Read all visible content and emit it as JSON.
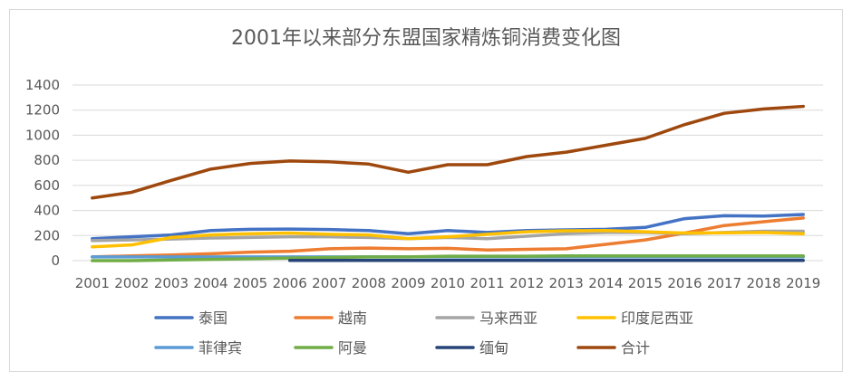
{
  "chart_data": {
    "type": "line",
    "title": "2001年以来部分东盟国家精炼铜消费变化图",
    "x": [
      "2001",
      "2002",
      "2003",
      "2004",
      "2005",
      "2006",
      "2007",
      "2008",
      "2009",
      "2010",
      "2011",
      "2012",
      "2013",
      "2014",
      "2015",
      "2016",
      "2017",
      "2018",
      "2019"
    ],
    "ylim": [
      0,
      1400
    ],
    "yticks": [
      0,
      200,
      400,
      600,
      800,
      1000,
      1200,
      1400
    ],
    "grid": true,
    "legend_position": "bottom",
    "series": [
      {
        "name": "泰国",
        "color": "#4472C4",
        "values": [
          175,
          190,
          205,
          240,
          250,
          252,
          248,
          240,
          215,
          240,
          225,
          240,
          245,
          250,
          265,
          335,
          358,
          355,
          368
        ]
      },
      {
        "name": "越南",
        "color": "#ED7D31",
        "values": [
          30,
          38,
          45,
          55,
          68,
          75,
          95,
          100,
          95,
          98,
          85,
          90,
          95,
          130,
          165,
          220,
          280,
          310,
          340
        ]
      },
      {
        "name": "马来西亚",
        "color": "#A5A5A5",
        "values": [
          160,
          165,
          172,
          180,
          185,
          190,
          190,
          185,
          175,
          185,
          175,
          195,
          215,
          225,
          225,
          215,
          225,
          235,
          235
        ]
      },
      {
        "name": "印度尼西亚",
        "color": "#FFC000",
        "values": [
          110,
          125,
          185,
          205,
          215,
          220,
          210,
          205,
          175,
          190,
          210,
          230,
          238,
          240,
          230,
          220,
          222,
          225,
          215
        ]
      },
      {
        "name": "菲律宾",
        "color": "#5B9BD5",
        "values": [
          30,
          30,
          30,
          30,
          30,
          30,
          30,
          30,
          30,
          30,
          30,
          30,
          30,
          30,
          30,
          30,
          30,
          30,
          30
        ]
      },
      {
        "name": "阿曼",
        "color": "#70AD47",
        "values": [
          0,
          0,
          5,
          10,
          15,
          20,
          25,
          30,
          30,
          35,
          35,
          35,
          38,
          38,
          38,
          38,
          38,
          38,
          38
        ]
      },
      {
        "name": "缅甸",
        "color": "#264478",
        "values": [
          null,
          null,
          null,
          null,
          null,
          2,
          2,
          2,
          2,
          2,
          2,
          2,
          2,
          2,
          2,
          2,
          2,
          2,
          2
        ]
      },
      {
        "name": "合计",
        "color": "#9E480E",
        "values": [
          500,
          545,
          640,
          730,
          775,
          795,
          788,
          770,
          705,
          765,
          765,
          830,
          865,
          920,
          975,
          1085,
          1175,
          1210,
          1230
        ]
      }
    ]
  }
}
